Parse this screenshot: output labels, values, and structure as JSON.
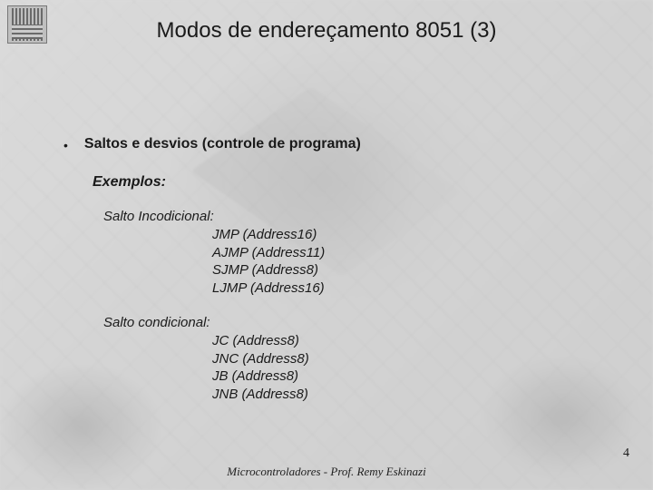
{
  "title": "Modos de endereçamento 8051 (3)",
  "bullet": {
    "marker": "•",
    "text": "Saltos e desvios (controle de programa)"
  },
  "examples_label": "Exemplos:",
  "blocks": [
    {
      "head": "Salto Incodicional:",
      "items": [
        "JMP (Address16)",
        "AJMP (Address11)",
        "SJMP (Address8)",
        "LJMP (Address16)"
      ]
    },
    {
      "head": "Salto condicional:",
      "items": [
        "JC (Address8)",
        "JNC (Address8)",
        "JB (Address8)",
        "JNB (Address8)"
      ]
    }
  ],
  "footer": "Microcontroladores - Prof. Remy Eskinazi",
  "page_number": "4",
  "colors": {
    "background": "#d8d8d8",
    "text": "#1a1a1a"
  },
  "fonts": {
    "title_size_pt": 18,
    "body_size_pt": 12,
    "footer_size_pt": 10
  }
}
